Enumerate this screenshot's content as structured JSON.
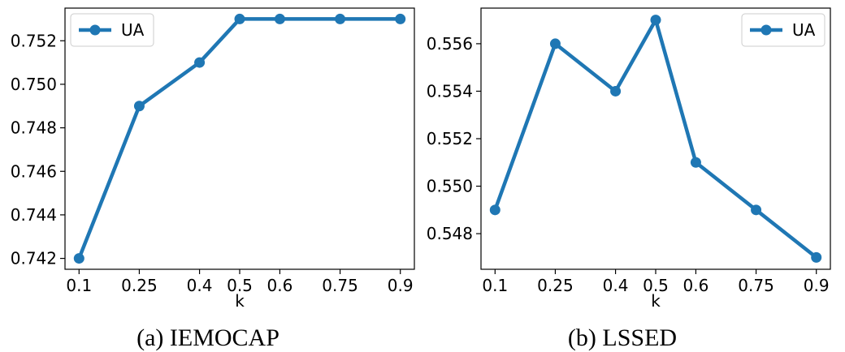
{
  "chart_data": [
    {
      "type": "line",
      "caption": "(a)  IEMOCAP",
      "xlabel": "k",
      "ylabel": "",
      "x": [
        0.1,
        0.25,
        0.4,
        0.5,
        0.6,
        0.75,
        0.9
      ],
      "x_tick_labels": [
        "0.1",
        "0.25",
        "0.4",
        "0.5",
        "0.6",
        "0.75",
        "0.9"
      ],
      "y_ticks": [
        0.742,
        0.744,
        0.746,
        0.748,
        0.75,
        0.752
      ],
      "y_tick_labels": [
        "0.742",
        "0.744",
        "0.746",
        "0.748",
        "0.750",
        "0.752"
      ],
      "xlim": [
        0.065,
        0.935
      ],
      "ylim": [
        0.7415,
        0.7535
      ],
      "grid": false,
      "legend_position": "top-left",
      "color": "#1f77b4",
      "series": [
        {
          "name": "UA",
          "values": [
            0.742,
            0.749,
            0.751,
            0.753,
            0.753,
            0.753,
            0.753
          ]
        }
      ]
    },
    {
      "type": "line",
      "caption": "(b)  LSSED",
      "xlabel": "k",
      "ylabel": "",
      "x": [
        0.1,
        0.25,
        0.4,
        0.5,
        0.6,
        0.75,
        0.9
      ],
      "x_tick_labels": [
        "0.1",
        "0.25",
        "0.4",
        "0.5",
        "0.6",
        "0.75",
        "0.9"
      ],
      "y_ticks": [
        0.548,
        0.55,
        0.552,
        0.554,
        0.556
      ],
      "y_tick_labels": [
        "0.548",
        "0.550",
        "0.552",
        "0.554",
        "0.556"
      ],
      "xlim": [
        0.065,
        0.935
      ],
      "ylim": [
        0.5465,
        0.5575
      ],
      "grid": false,
      "legend_position": "top-right",
      "color": "#1f77b4",
      "series": [
        {
          "name": "UA",
          "values": [
            0.549,
            0.556,
            0.554,
            0.557,
            0.551,
            0.549,
            0.547
          ]
        }
      ]
    }
  ]
}
